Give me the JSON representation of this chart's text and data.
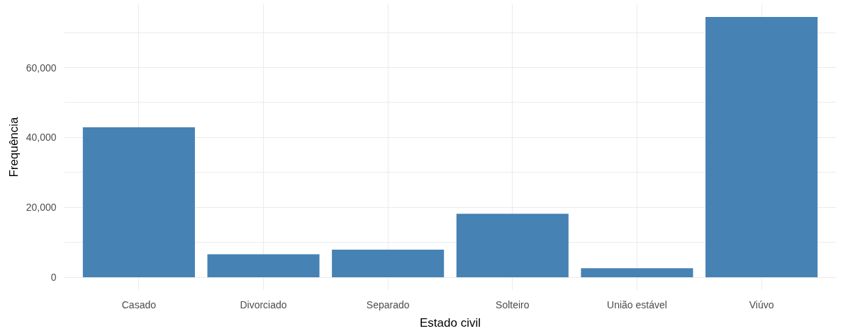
{
  "chart_data": {
    "type": "bar",
    "xlabel": "Estado civil",
    "ylabel": "Frequência",
    "categories": [
      "Casado",
      "Divorciado",
      "Separado",
      "Solteiro",
      "União estável",
      "Viúvo"
    ],
    "values": [
      42900,
      6600,
      7900,
      18200,
      2600,
      74500
    ],
    "color": "#4682b4",
    "ylim": [
      -3725,
      78225
    ],
    "yticks": [
      0,
      {
        "value": 10000,
        "label": null
      },
      {
        "value": 20000,
        "label": "20,000"
      },
      {
        "value": 30000,
        "label": null
      },
      {
        "value": 40000,
        "label": "40,000"
      },
      {
        "value": 50000,
        "label": null
      },
      {
        "value": 60000,
        "label": "60,000"
      },
      {
        "value": 70000,
        "label": null
      }
    ],
    "grid": true
  }
}
